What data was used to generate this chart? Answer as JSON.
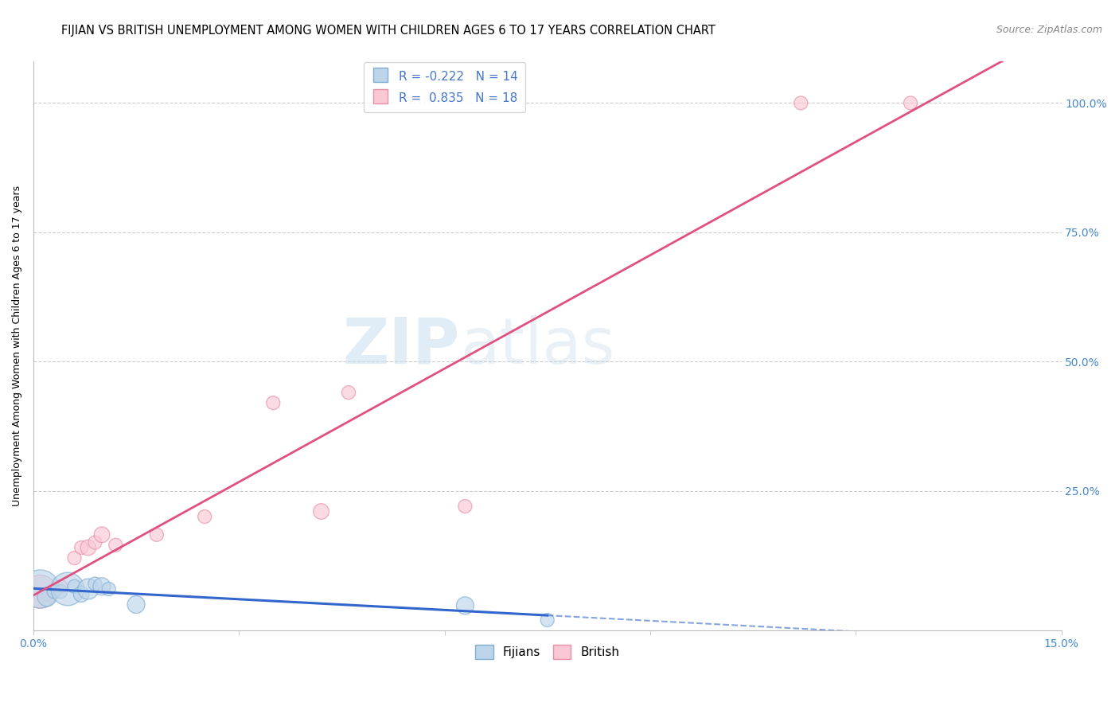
{
  "title": "FIJIAN VS BRITISH UNEMPLOYMENT AMONG WOMEN WITH CHILDREN AGES 6 TO 17 YEARS CORRELATION CHART",
  "source": "Source: ZipAtlas.com",
  "ylabel_left": "Unemployment Among Women with Children Ages 6 to 17 years",
  "ylabel_right_ticks": [
    "100.0%",
    "75.0%",
    "50.0%",
    "25.0%"
  ],
  "ylabel_right_values": [
    1.0,
    0.75,
    0.5,
    0.25
  ],
  "legend_entries": [
    {
      "label": "Fijians",
      "color": "#a8c4e0",
      "R": "-0.222",
      "N": "14"
    },
    {
      "label": "British",
      "color": "#f4a0b0",
      "R": "0.835",
      "N": "18"
    }
  ],
  "fijians_x": [
    0.001,
    0.002,
    0.003,
    0.004,
    0.005,
    0.006,
    0.007,
    0.008,
    0.009,
    0.01,
    0.011,
    0.015,
    0.063,
    0.075
  ],
  "fijians_y": [
    0.06,
    0.045,
    0.055,
    0.055,
    0.06,
    0.065,
    0.05,
    0.06,
    0.07,
    0.065,
    0.06,
    0.03,
    0.028,
    0.0
  ],
  "fijians_sizes": [
    1200,
    300,
    150,
    150,
    900,
    150,
    200,
    350,
    150,
    250,
    150,
    250,
    250,
    150
  ],
  "british_x": [
    0.001,
    0.002,
    0.003,
    0.004,
    0.006,
    0.007,
    0.008,
    0.009,
    0.01,
    0.012,
    0.018,
    0.025,
    0.035,
    0.042,
    0.046,
    0.063,
    0.112,
    0.128
  ],
  "british_y": [
    0.055,
    0.05,
    0.055,
    0.065,
    0.12,
    0.14,
    0.14,
    0.15,
    0.165,
    0.145,
    0.165,
    0.2,
    0.42,
    0.21,
    0.44,
    0.22,
    1.0,
    1.0
  ],
  "british_sizes": [
    900,
    150,
    150,
    150,
    150,
    150,
    200,
    150,
    200,
    150,
    150,
    150,
    150,
    200,
    150,
    150,
    150,
    150
  ],
  "xlim": [
    0.0,
    0.15
  ],
  "ylim": [
    -0.02,
    1.08
  ],
  "fijian_line_color": "#3366cc",
  "british_line_color": "#e05080",
  "background_color": "#ffffff",
  "grid_color": "#cccccc",
  "watermark_zip": "ZIP",
  "watermark_atlas": "atlas",
  "title_fontsize": 10.5,
  "axis_label_fontsize": 9,
  "tick_fontsize": 10,
  "source_fontsize": 9
}
